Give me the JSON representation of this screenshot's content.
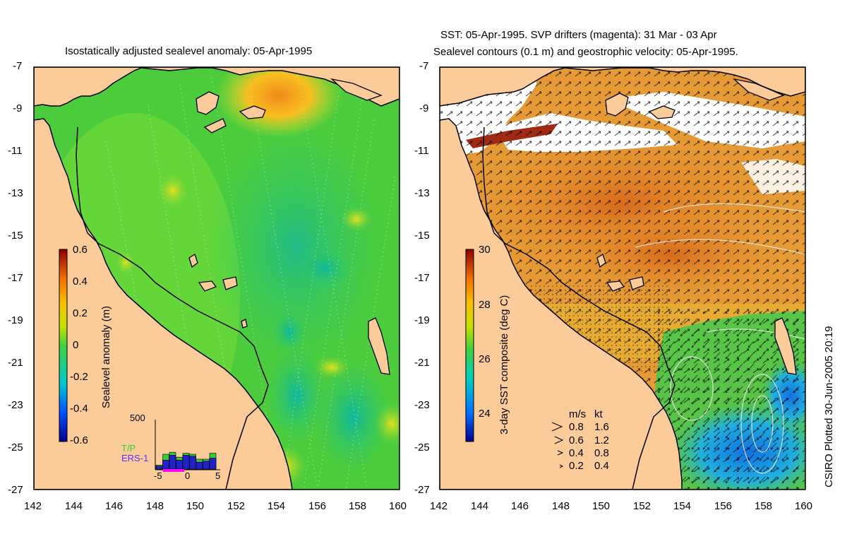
{
  "left_panel": {
    "title": "Isostatically adjusted sealevel anomaly: 05-Apr-1995",
    "lat_ticks": [
      "-7",
      "-9",
      "-11",
      "-13",
      "-15",
      "-17",
      "-19",
      "-21",
      "-23",
      "-25",
      "-27"
    ],
    "lon_ticks": [
      "142",
      "144",
      "146",
      "148",
      "150",
      "152",
      "154",
      "156",
      "158",
      "160"
    ],
    "colorbar": {
      "label": "Sealevel anomaly (m)",
      "ticks": [
        "0.6",
        "0.4",
        "0.2",
        "0",
        "-0.2",
        "-0.4",
        "-0.6"
      ],
      "range": [
        -0.6,
        0.6
      ]
    },
    "inset": {
      "ymax_label": "500",
      "legend_tp": "T/P",
      "legend_ers": "ERS-1",
      "xticks": [
        "-5",
        "0",
        "5"
      ],
      "tp_values": [
        40,
        150,
        170,
        120,
        160,
        150,
        100,
        100,
        160
      ],
      "ers_values": [
        30,
        90,
        140,
        90,
        140,
        130,
        70,
        80,
        110
      ],
      "colors": {
        "tp": "#33cc33",
        "ers": "#2222cc",
        "label_tp": "#33cc33",
        "label_ers": "#5533ff"
      }
    }
  },
  "right_panel": {
    "title_line1": "SST: 05-Apr-1995. SVP drifters (magenta): 31 Mar - 03 Apr",
    "title_line2": "Sealevel contours (0.1 m) and geostrophic velocity: 05-Apr-1995.",
    "lat_ticks": [
      "-7",
      "-9",
      "-11",
      "-13",
      "-15",
      "-17",
      "-19",
      "-21",
      "-23",
      "-25",
      "-27"
    ],
    "lon_ticks": [
      "142",
      "144",
      "146",
      "148",
      "150",
      "152",
      "154",
      "156",
      "158",
      "160"
    ],
    "colorbar": {
      "label": "3-day SST composite (deg C)",
      "ticks": [
        "30",
        "28",
        "26",
        "24"
      ],
      "range": [
        23,
        30
      ]
    },
    "velocity_legend": {
      "header_ms": "m/s",
      "header_kt": "kt",
      "rows": [
        {
          "ms": "0.8",
          "kt": "1.6"
        },
        {
          "ms": "0.6",
          "kt": "1.2"
        },
        {
          "ms": "0.4",
          "kt": "0.8"
        },
        {
          "ms": "0.2",
          "kt": "0.4"
        }
      ]
    }
  },
  "credit": "CSIRO Plotted 30-Jun-2005 20:19",
  "colors": {
    "land": "#fbcb99",
    "sea_green": "#3fcf3f",
    "sea_light": "#7ee23a",
    "sea_teal": "#2fbf7f",
    "sst_orange": "#e88a22",
    "sst_red": "#c9531a",
    "sst_yellow": "#f0b030",
    "sst_blue": "#1a8fe0",
    "coast": "#000000"
  }
}
